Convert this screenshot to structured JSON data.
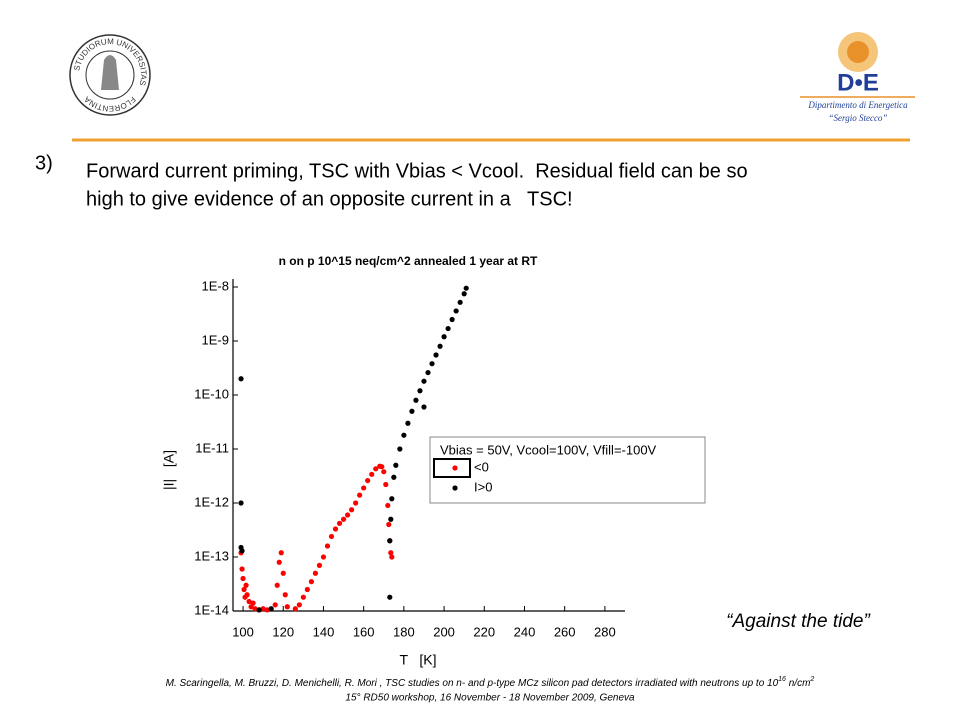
{
  "slide": {
    "number": "3)",
    "body": [
      "Forward current priming, TSC with Vbias < Vcool.  Residual field can be so",
      "high to give evidence of an opposite current in a   TSC!"
    ],
    "quote": "“Against the tide”",
    "footer": {
      "line1": [
        "M. Scaringella, M. Bruzzi, D. Menichelli, R. Mori , TSC studies on n- and p-type MCz silicon pad detectors irradiated with neutrons up to 10",
        "16",
        " n/cm",
        "2"
      ],
      "line2": "15° RD50 workshop, 16 November - 18 November 2009, Geneva"
    },
    "logo_left": [
      "STUDIORUM",
      "UNIVERSITAS",
      "FLORENTINA"
    ],
    "logo_right": {
      "mark": "D•E",
      "name": "Dipartimento di Energetica",
      "subname": "“Sergio Stecco”"
    }
  },
  "chart_data": {
    "type": "scatter",
    "title": "n on p 10^15 neq/cm^2 annealed 1 year at RT",
    "xlabel": "T   [K]",
    "ylabel": "|I|   [A]",
    "xlim": [
      95,
      290
    ],
    "ylim": [
      1e-14,
      1e-08
    ],
    "ylog": true,
    "xticks": [
      100,
      120,
      140,
      160,
      180,
      200,
      220,
      240,
      260,
      280
    ],
    "yticks": [
      {
        "value": 1e-14,
        "label": "1E-14"
      },
      {
        "value": 1e-13,
        "label": "1E-13"
      },
      {
        "value": 1e-12,
        "label": "1E-12"
      },
      {
        "value": 1e-11,
        "label": "1E-11"
      },
      {
        "value": 1e-10,
        "label": "1E-10"
      },
      {
        "value": 1e-09,
        "label": "1E-9"
      },
      {
        "value": 1e-08,
        "label": "1E-8"
      }
    ],
    "legend_title": "Vbias = 50V, Vcool=100V, Vfill=-100V",
    "series": [
      {
        "name": "<0",
        "color": "#ff0000",
        "x": [
          99,
          99.5,
          100,
          100.5,
          101,
          101.5,
          102,
          103,
          104,
          105,
          106,
          108,
          110,
          112,
          116,
          117,
          118,
          119,
          120,
          121,
          122,
          126,
          128,
          130,
          132,
          134,
          136,
          138,
          140,
          142,
          144,
          146,
          148,
          150,
          152,
          154,
          156,
          158,
          160,
          162,
          164,
          166,
          168,
          169,
          170,
          171,
          172,
          172.5,
          173,
          173.5,
          174
        ],
        "values": [
          1.2e-13,
          6e-14,
          4e-14,
          2.5e-14,
          1.8e-14,
          3e-14,
          2e-14,
          1.5e-14,
          1.2e-14,
          1.4e-14,
          1.1e-14,
          1.05e-14,
          1.1e-14,
          1.05e-14,
          1.3e-14,
          3e-14,
          8e-14,
          1.2e-13,
          5e-14,
          2e-14,
          1.2e-14,
          1.1e-14,
          1.3e-14,
          1.8e-14,
          2.5e-14,
          3.5e-14,
          5e-14,
          7e-14,
          1e-13,
          1.6e-13,
          2.4e-13,
          3.3e-13,
          4.2e-13,
          5e-13,
          6e-13,
          7.5e-13,
          1e-12,
          1.4e-12,
          1.9e-12,
          2.6e-12,
          3.4e-12,
          4.3e-12,
          4.8e-12,
          4.7e-12,
          3.8e-12,
          2.2e-12,
          9e-13,
          4e-13,
          2e-13,
          1.2e-13,
          1e-13
        ]
      },
      {
        "name": "I>0",
        "color": "#000000",
        "x": [
          99,
          99,
          99,
          99.5,
          108,
          114,
          173,
          173,
          173.5,
          174,
          175,
          176,
          178,
          180,
          182,
          184,
          186,
          188,
          190,
          192,
          194,
          196,
          198,
          200,
          202,
          204,
          206,
          208,
          210,
          211,
          190
        ],
        "values": [
          2e-10,
          1e-12,
          1.5e-13,
          1.3e-13,
          1.05e-14,
          1.1e-14,
          1.8e-14,
          2e-13,
          5e-13,
          1.2e-12,
          3e-12,
          5e-12,
          1e-11,
          1.8e-11,
          3e-11,
          5e-11,
          8e-11,
          1.2e-10,
          1.8e-10,
          2.6e-10,
          3.8e-10,
          5.5e-10,
          8e-10,
          1.2e-09,
          1.7e-09,
          2.5e-09,
          3.6e-09,
          5.2e-09,
          7.5e-09,
          9.5e-09,
          6e-11
        ]
      }
    ]
  }
}
